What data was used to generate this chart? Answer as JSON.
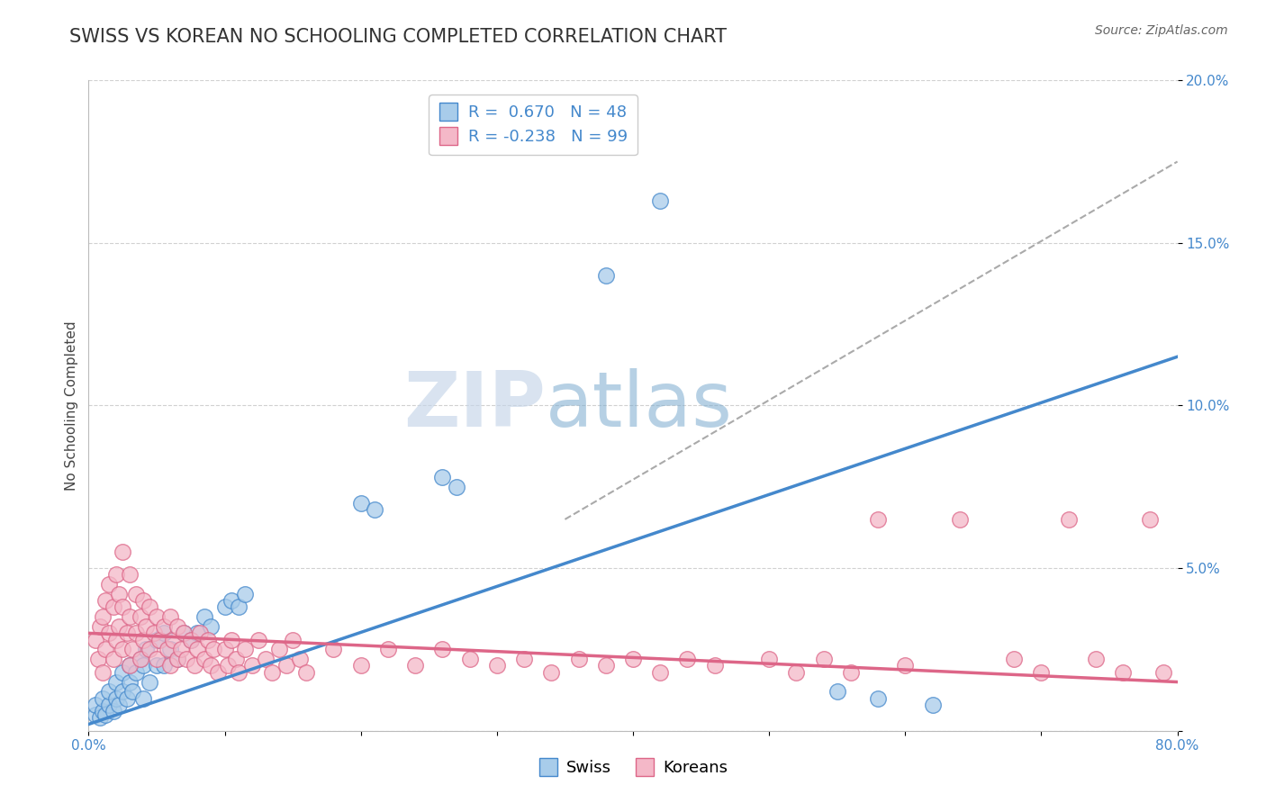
{
  "title": "SWISS VS KOREAN NO SCHOOLING COMPLETED CORRELATION CHART",
  "source": "Source: ZipAtlas.com",
  "ylabel": "No Schooling Completed",
  "xlim": [
    0,
    0.8
  ],
  "ylim": [
    0,
    0.2
  ],
  "yticks": [
    0.0,
    0.05,
    0.1,
    0.15,
    0.2
  ],
  "swiss_color": "#A8CCEA",
  "korean_color": "#F4B8C8",
  "swiss_line_color": "#4488CC",
  "korean_line_color": "#DD6688",
  "swiss_R": 0.67,
  "swiss_N": 48,
  "korean_R": -0.238,
  "korean_N": 99,
  "watermark_zip": "ZIP",
  "watermark_atlas": "atlas",
  "background_color": "#ffffff",
  "grid_color": "#cccccc",
  "title_fontsize": 15,
  "axis_label_fontsize": 11,
  "tick_fontsize": 11,
  "legend_fontsize": 13,
  "swiss_line": [
    0.0,
    0.002,
    0.8,
    0.115
  ],
  "korean_line": [
    0.0,
    0.03,
    0.8,
    0.015
  ],
  "gray_line": [
    0.35,
    0.065,
    0.8,
    0.175
  ],
  "swiss_points": [
    [
      0.005,
      0.005
    ],
    [
      0.005,
      0.008
    ],
    [
      0.008,
      0.004
    ],
    [
      0.01,
      0.006
    ],
    [
      0.01,
      0.01
    ],
    [
      0.012,
      0.005
    ],
    [
      0.015,
      0.008
    ],
    [
      0.015,
      0.012
    ],
    [
      0.018,
      0.006
    ],
    [
      0.02,
      0.01
    ],
    [
      0.02,
      0.015
    ],
    [
      0.022,
      0.008
    ],
    [
      0.025,
      0.012
    ],
    [
      0.025,
      0.018
    ],
    [
      0.028,
      0.01
    ],
    [
      0.03,
      0.015
    ],
    [
      0.03,
      0.02
    ],
    [
      0.032,
      0.012
    ],
    [
      0.035,
      0.018
    ],
    [
      0.038,
      0.022
    ],
    [
      0.04,
      0.01
    ],
    [
      0.04,
      0.02
    ],
    [
      0.042,
      0.025
    ],
    [
      0.045,
      0.015
    ],
    [
      0.05,
      0.02
    ],
    [
      0.05,
      0.028
    ],
    [
      0.055,
      0.02
    ],
    [
      0.055,
      0.03
    ],
    [
      0.06,
      0.025
    ],
    [
      0.065,
      0.022
    ],
    [
      0.07,
      0.03
    ],
    [
      0.075,
      0.028
    ],
    [
      0.08,
      0.03
    ],
    [
      0.085,
      0.035
    ],
    [
      0.09,
      0.032
    ],
    [
      0.1,
      0.038
    ],
    [
      0.105,
      0.04
    ],
    [
      0.11,
      0.038
    ],
    [
      0.115,
      0.042
    ],
    [
      0.2,
      0.07
    ],
    [
      0.21,
      0.068
    ],
    [
      0.26,
      0.078
    ],
    [
      0.27,
      0.075
    ],
    [
      0.38,
      0.14
    ],
    [
      0.42,
      0.163
    ],
    [
      0.55,
      0.012
    ],
    [
      0.58,
      0.01
    ],
    [
      0.62,
      0.008
    ]
  ],
  "korean_points": [
    [
      0.005,
      0.028
    ],
    [
      0.007,
      0.022
    ],
    [
      0.008,
      0.032
    ],
    [
      0.01,
      0.018
    ],
    [
      0.01,
      0.035
    ],
    [
      0.012,
      0.025
    ],
    [
      0.012,
      0.04
    ],
    [
      0.015,
      0.03
    ],
    [
      0.015,
      0.045
    ],
    [
      0.018,
      0.022
    ],
    [
      0.018,
      0.038
    ],
    [
      0.02,
      0.028
    ],
    [
      0.02,
      0.048
    ],
    [
      0.022,
      0.032
    ],
    [
      0.022,
      0.042
    ],
    [
      0.025,
      0.025
    ],
    [
      0.025,
      0.038
    ],
    [
      0.025,
      0.055
    ],
    [
      0.028,
      0.03
    ],
    [
      0.03,
      0.02
    ],
    [
      0.03,
      0.035
    ],
    [
      0.03,
      0.048
    ],
    [
      0.032,
      0.025
    ],
    [
      0.035,
      0.03
    ],
    [
      0.035,
      0.042
    ],
    [
      0.038,
      0.022
    ],
    [
      0.038,
      0.035
    ],
    [
      0.04,
      0.028
    ],
    [
      0.04,
      0.04
    ],
    [
      0.042,
      0.032
    ],
    [
      0.045,
      0.025
    ],
    [
      0.045,
      0.038
    ],
    [
      0.048,
      0.03
    ],
    [
      0.05,
      0.022
    ],
    [
      0.05,
      0.035
    ],
    [
      0.052,
      0.028
    ],
    [
      0.055,
      0.032
    ],
    [
      0.058,
      0.025
    ],
    [
      0.06,
      0.02
    ],
    [
      0.06,
      0.035
    ],
    [
      0.062,
      0.028
    ],
    [
      0.065,
      0.022
    ],
    [
      0.065,
      0.032
    ],
    [
      0.068,
      0.025
    ],
    [
      0.07,
      0.03
    ],
    [
      0.072,
      0.022
    ],
    [
      0.075,
      0.028
    ],
    [
      0.078,
      0.02
    ],
    [
      0.08,
      0.025
    ],
    [
      0.082,
      0.03
    ],
    [
      0.085,
      0.022
    ],
    [
      0.088,
      0.028
    ],
    [
      0.09,
      0.02
    ],
    [
      0.092,
      0.025
    ],
    [
      0.095,
      0.018
    ],
    [
      0.1,
      0.025
    ],
    [
      0.102,
      0.02
    ],
    [
      0.105,
      0.028
    ],
    [
      0.108,
      0.022
    ],
    [
      0.11,
      0.018
    ],
    [
      0.115,
      0.025
    ],
    [
      0.12,
      0.02
    ],
    [
      0.125,
      0.028
    ],
    [
      0.13,
      0.022
    ],
    [
      0.135,
      0.018
    ],
    [
      0.14,
      0.025
    ],
    [
      0.145,
      0.02
    ],
    [
      0.15,
      0.028
    ],
    [
      0.155,
      0.022
    ],
    [
      0.16,
      0.018
    ],
    [
      0.18,
      0.025
    ],
    [
      0.2,
      0.02
    ],
    [
      0.22,
      0.025
    ],
    [
      0.24,
      0.02
    ],
    [
      0.26,
      0.025
    ],
    [
      0.28,
      0.022
    ],
    [
      0.3,
      0.02
    ],
    [
      0.32,
      0.022
    ],
    [
      0.34,
      0.018
    ],
    [
      0.36,
      0.022
    ],
    [
      0.38,
      0.02
    ],
    [
      0.4,
      0.022
    ],
    [
      0.42,
      0.018
    ],
    [
      0.44,
      0.022
    ],
    [
      0.46,
      0.02
    ],
    [
      0.5,
      0.022
    ],
    [
      0.52,
      0.018
    ],
    [
      0.54,
      0.022
    ],
    [
      0.56,
      0.018
    ],
    [
      0.58,
      0.065
    ],
    [
      0.6,
      0.02
    ],
    [
      0.64,
      0.065
    ],
    [
      0.68,
      0.022
    ],
    [
      0.7,
      0.018
    ],
    [
      0.72,
      0.065
    ],
    [
      0.74,
      0.022
    ],
    [
      0.76,
      0.018
    ],
    [
      0.78,
      0.065
    ],
    [
      0.79,
      0.018
    ]
  ]
}
